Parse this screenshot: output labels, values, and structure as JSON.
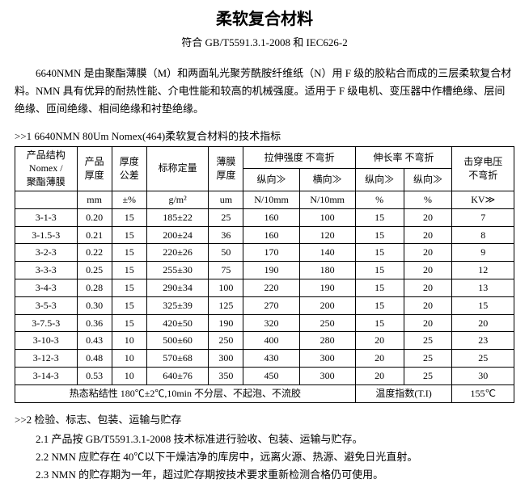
{
  "title": "柔软复合材料",
  "subtitle": "符合 GB/T5591.3.1-2008 和 IEC626-2",
  "description": "6640NMN 是由聚酯薄膜（M）和两面轧光聚芳酰胺纤维纸（N）用 F 级的胶粘合而成的三层柔软复合材料。NMN 具有优异的耐热性能、介电性能和较高的机械强度。适用于 F 级电机、变压器中作槽绝缘、层间绝缘、匝间绝缘、相间绝缘和衬垫绝缘。",
  "section1_heading": ">>1  6640NMN 80Um Nomex(464)柔软复合材料的技术指标",
  "header": {
    "col_structure_a": "产品结构",
    "col_structure_b": "Nomex /",
    "col_structure_c": "聚酯薄膜",
    "col_thickness": "产品",
    "col_thickness_b": "厚度",
    "col_tolerance": "厚度",
    "col_tolerance_b": "公差",
    "col_weight": "标称定量",
    "col_film": "薄膜",
    "col_film_b": "厚度",
    "col_tensile": "拉伸强度 不弯折",
    "col_tensile_md": "纵向≫",
    "col_tensile_td": "横向≫",
    "col_elong": "伸长率 不弯折",
    "col_elong_md": "纵向≫",
    "col_elong_td": "纵向≫",
    "col_bdv": "击穿电压",
    "col_bdv_b": "不弯折",
    "unit_blank": "",
    "unit_mm": "mm",
    "unit_pct": "±%",
    "unit_gm2": "g/m²",
    "unit_um": "um",
    "unit_n10a": "N/10mm",
    "unit_n10b": "N/10mm",
    "unit_pct2": "%",
    "unit_pct3": "%",
    "unit_kv": "KV≫"
  },
  "rows": [
    {
      "c": [
        "3-1-3",
        "0.20",
        "15",
        "185±22",
        "25",
        "160",
        "100",
        "15",
        "20",
        "7"
      ]
    },
    {
      "c": [
        "3-1.5-3",
        "0.21",
        "15",
        "200±24",
        "36",
        "160",
        "120",
        "15",
        "20",
        "8"
      ]
    },
    {
      "c": [
        "3-2-3",
        "0.22",
        "15",
        "220±26",
        "50",
        "170",
        "140",
        "15",
        "20",
        "9"
      ]
    },
    {
      "c": [
        "3-3-3",
        "0.25",
        "15",
        "255±30",
        "75",
        "190",
        "180",
        "15",
        "20",
        "12"
      ]
    },
    {
      "c": [
        "3-4-3",
        "0.28",
        "15",
        "290±34",
        "100",
        "220",
        "190",
        "15",
        "20",
        "13"
      ]
    },
    {
      "c": [
        "3-5-3",
        "0.30",
        "15",
        "325±39",
        "125",
        "270",
        "200",
        "15",
        "20",
        "15"
      ]
    },
    {
      "c": [
        "3-7.5-3",
        "0.36",
        "15",
        "420±50",
        "190",
        "320",
        "250",
        "15",
        "20",
        "20"
      ]
    },
    {
      "c": [
        "3-10-3",
        "0.43",
        "10",
        "500±60",
        "250",
        "400",
        "280",
        "20",
        "25",
        "23"
      ]
    },
    {
      "c": [
        "3-12-3",
        "0.48",
        "10",
        "570±68",
        "300",
        "430",
        "300",
        "20",
        "25",
        "25"
      ]
    },
    {
      "c": [
        "3-14-3",
        "0.53",
        "10",
        "640±76",
        "350",
        "450",
        "300",
        "20",
        "25",
        "30"
      ]
    }
  ],
  "footer_row": {
    "thermal": "热态粘结性 180℃±2℃,10min  不分层、不起泡、不流胶",
    "ti_label": "温度指数(T.I)",
    "ti_value": "155℃"
  },
  "section2_heading": ">>2  检验、标志、包装、运输与贮存",
  "section2_items": [
    "2.1 产品按 GB/T5591.3.1-2008 技术标准进行验收、包装、运输与贮存。",
    "2.2 NMN 应贮存在 40℃以下干燥洁净的库房中，远离火源、热源、避免日光直射。",
    "2.3 NMN 的贮存期为一年，超过贮存期按技术要求重新检测合格仍可使用。"
  ]
}
